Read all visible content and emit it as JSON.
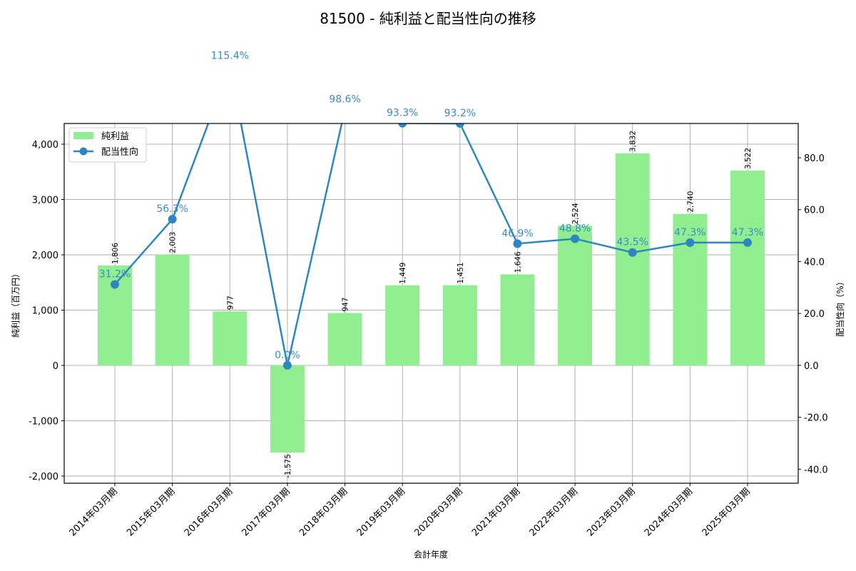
{
  "chart_data": {
    "type": "bar+line",
    "title": "81500 - 純利益と配当性向の推移",
    "xlabel": "会計年度",
    "ylabel_left": "純利益（百万円）",
    "ylabel_right": "配当性向（%）",
    "categories": [
      "2014年03月期",
      "2015年03月期",
      "2016年03月期",
      "2017年03月期",
      "2018年03月期",
      "2019年03月期",
      "2020年03月期",
      "2021年03月期",
      "2022年03月期",
      "2023年03月期",
      "2024年03月期",
      "2025年03月期"
    ],
    "series": [
      {
        "name": "純利益",
        "type": "bar",
        "axis": "left",
        "color": "#90ee90",
        "values": [
          1806,
          2003,
          977,
          -1575,
          947,
          1449,
          1451,
          1646,
          2524,
          3832,
          2740,
          3522
        ],
        "labels": [
          "1,806",
          "2,003",
          "977",
          "-1,575",
          "947",
          "1,449",
          "1,451",
          "1,646",
          "2,524",
          "3,832",
          "2,740",
          "3,522"
        ]
      },
      {
        "name": "配当性向",
        "type": "line",
        "axis": "right",
        "color": "#2e86c1",
        "values": [
          31.2,
          56.3,
          115.4,
          0.0,
          98.6,
          93.3,
          93.2,
          46.9,
          48.8,
          43.5,
          47.3,
          47.3
        ],
        "labels": [
          "31.2%",
          "56.3%",
          "115.4%",
          "0.0%",
          "98.6%",
          "93.3%",
          "93.2%",
          "46.9%",
          "48.8%",
          "43.5%",
          "47.3%",
          "47.3%"
        ]
      }
    ],
    "ylim_left": [
      -2129,
      4374
    ],
    "ylim_right": [
      -45.4,
      93.2
    ],
    "yticks_left": [
      -2000,
      -1000,
      0,
      1000,
      2000,
      3000,
      4000
    ],
    "yticks_left_labels": [
      "-2,000",
      "-1,000",
      "0",
      "1,000",
      "2,000",
      "3,000",
      "4,000"
    ],
    "yticks_right": [
      -40,
      -20,
      0,
      20,
      40,
      60,
      80
    ],
    "yticks_right_labels": [
      "-40.0",
      "-20.0",
      "0.0",
      "20.0",
      "40.0",
      "60.0",
      "80.0"
    ],
    "grid": true,
    "legend_position": "upper left"
  },
  "legend": {
    "items": [
      {
        "label": "純利益",
        "color": "#90ee90"
      },
      {
        "label": "配当性向",
        "color": "#2e86c1"
      }
    ]
  }
}
